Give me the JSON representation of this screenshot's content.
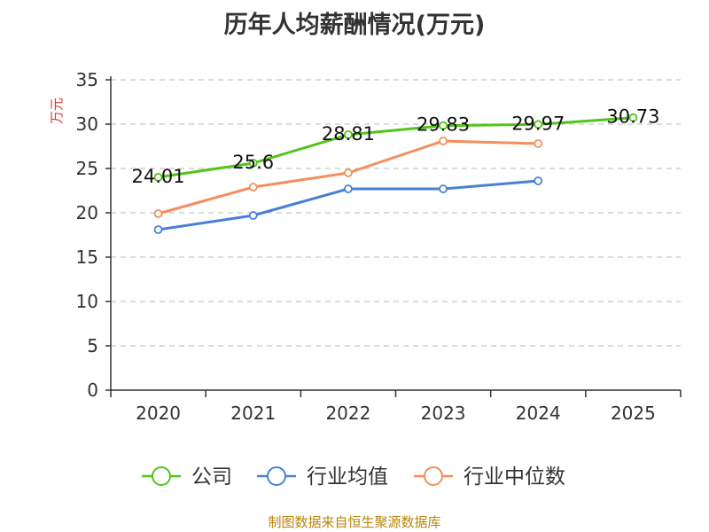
{
  "chart_data": {
    "type": "line",
    "title": "历年人均薪酬情况(万元)",
    "ylabel": "万元",
    "xlabel": "",
    "categories": [
      "2020",
      "2021",
      "2022",
      "2023",
      "2024",
      "2025"
    ],
    "ylim": [
      0,
      35
    ],
    "yticks": [
      0,
      5,
      10,
      15,
      20,
      25,
      30,
      35
    ],
    "grid": true,
    "legend_position": "bottom",
    "series": [
      {
        "name": "公司",
        "color": "#52c41a",
        "values": [
          24.01,
          25.6,
          28.81,
          29.83,
          29.97,
          30.73
        ],
        "labels": [
          "24.01",
          "25.6",
          "28.81",
          "29.83",
          "29.97",
          "30.73"
        ]
      },
      {
        "name": "行业均值",
        "color": "#4a7fd6",
        "values": [
          18.1,
          19.7,
          22.7,
          22.7,
          23.6,
          null
        ]
      },
      {
        "name": "行业中位数",
        "color": "#f58d5c",
        "values": [
          19.9,
          22.9,
          24.5,
          28.1,
          27.8,
          null
        ]
      }
    ]
  },
  "footer": {
    "source": "制图数据来自恒生聚源数据库"
  }
}
